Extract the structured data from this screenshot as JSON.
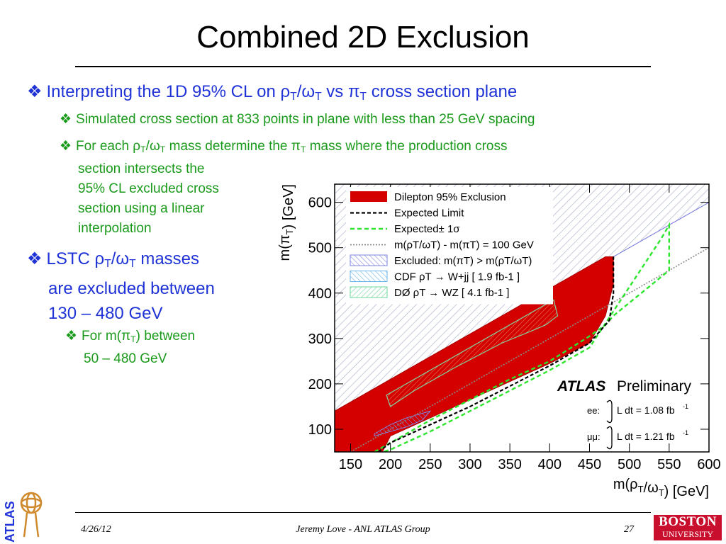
{
  "slide": {
    "title": "Combined 2D Exclusion",
    "bullets": {
      "b1_text": "Interpreting the 1D 95% CL on ",
      "b1_rho": "ρ",
      "b1_sub_T": "T",
      "b1_slash_omega": "/ω",
      "b1_vs": " vs π",
      "b1_tail": " cross section plane",
      "b1_1": "Simulated cross section at 833 points in plane with less than 25 GeV spacing",
      "b1_2_pre": "For each ρ",
      "b1_2_mid": "/ω",
      "b1_2_mass": " mass determine the π",
      "b1_2_line1_tail": " mass where the production cross",
      "b1_2_line2": "section intersects the",
      "b1_2_line3": "95% CL excluded cross",
      "b1_2_line4": "section using a linear",
      "b1_2_line5": "interpolation",
      "b2_pre": "LSTC ρ",
      "b2_mid": "/ω",
      "b2_tail": " masses",
      "b2_line2": "are excluded between",
      "b2_line3": "130 – 480 GeV",
      "b2_1_pre": "For m(π",
      "b2_1_tail": ") between",
      "b2_1_line2": "50 – 480 GeV"
    }
  },
  "chart_data": {
    "type": "area",
    "xlabel_pre": "m(ρ",
    "xlabel_sub1": "T",
    "xlabel_mid": "/ω",
    "xlabel_sub2": "T",
    "xlabel_post": ") [GeV]",
    "ylabel_pre": "m(π",
    "ylabel_sub": "T",
    "ylabel_post": ") [GeV]",
    "xlim": [
      130,
      600
    ],
    "ylim": [
      50,
      640
    ],
    "xticks": [
      "150",
      "200",
      "250",
      "300",
      "350",
      "400",
      "450",
      "500",
      "550",
      "600"
    ],
    "yticks": [
      "100",
      "200",
      "300",
      "400",
      "500",
      "600"
    ],
    "legend": [
      {
        "label": "Dilepton 95% Exclusion",
        "style": "fill-red"
      },
      {
        "label": "Expected Limit",
        "style": "dash-black"
      },
      {
        "label": "Expected± 1σ",
        "style": "dash-green"
      },
      {
        "label": "m(ρT/ωT) - m(πT) = 100 GeV",
        "style": "dot-grey"
      },
      {
        "label": "Excluded: m(πT) > m(ρT/ωT)",
        "style": "hatch-blue"
      },
      {
        "label": "CDF  ρT → W+jj [ 1.9 fb-1 ]",
        "style": "hatch-lightblue"
      },
      {
        "label": "DØ  ρT → WZ [ 4.1 fb-1 ]",
        "style": "hatch-green"
      }
    ],
    "annotation": {
      "atlas": "ATLAS",
      "preliminary": "Preliminary",
      "ee_label": "ee:",
      "ee_lumi": "L dt = 1.08 fb",
      "ee_sup": "-1",
      "mm_label": "μμ:",
      "mm_lumi": "L dt = 1.21 fb",
      "mm_sup": "-1"
    },
    "series": [
      {
        "name": "Dilepton 95% Exclusion",
        "x": [
          130,
          150,
          200,
          250,
          300,
          350,
          400,
          450,
          470,
          480,
          480,
          470,
          450,
          400,
          350,
          300,
          250,
          200,
          190,
          130
        ],
        "y": [
          140,
          160,
          210,
          260,
          310,
          360,
          410,
          460,
          480,
          480,
          420,
          350,
          290,
          245,
          205,
          165,
          125,
          85,
          50,
          50
        ]
      },
      {
        "name": "Expected Limit",
        "x": [
          185,
          200,
          250,
          300,
          350,
          400,
          450,
          475,
          480,
          480
        ],
        "y": [
          50,
          70,
          110,
          150,
          195,
          240,
          290,
          340,
          400,
          480
        ]
      },
      {
        "name": "Expected± 1σ",
        "x": [
          180,
          200,
          250,
          300,
          350,
          400,
          450,
          470,
          480,
          550,
          550,
          540,
          450,
          400,
          350,
          300,
          250,
          200,
          190
        ],
        "y": [
          50,
          70,
          120,
          165,
          210,
          250,
          305,
          330,
          350,
          450,
          550,
          520,
          280,
          230,
          185,
          140,
          95,
          55,
          50
        ]
      },
      {
        "name": "m(ρT/ωT) - m(πT) = 100 GeV",
        "x": [
          150,
          600
        ],
        "y": [
          50,
          500
        ]
      },
      {
        "name": "Excluded: m(πT) > m(ρT/ωT)",
        "x": [
          130,
          600
        ],
        "y": [
          130,
          600
        ]
      },
      {
        "name": "CDF  ρT → W+jj [ 1.9 fb-1 ]",
        "x": [
          180,
          200,
          220,
          240,
          250,
          240,
          220,
          200,
          180
        ],
        "y": [
          90,
          110,
          125,
          135,
          140,
          120,
          105,
          95,
          85
        ]
      },
      {
        "name": "DØ  ρT → WZ [ 4.1 fb-1 ]",
        "x": [
          195,
          400,
          405,
          410,
          395,
          375,
          340,
          280,
          230,
          200,
          195
        ],
        "y": [
          175,
          380,
          385,
          350,
          330,
          315,
          290,
          235,
          185,
          150,
          175
        ]
      }
    ]
  },
  "footer": {
    "date": "4/26/12",
    "author": "Jeremy Love - ANL ATLAS Group",
    "page": "27",
    "logo_atlas": "ATLAS",
    "logo_bu_line1": "BOSTON",
    "logo_bu_line2": "UNIVERSITY"
  },
  "colors": {
    "bullet_blue": "#1f33d6",
    "subbullet_green": "#1a9a1a",
    "exclusion_red": "#d40000",
    "atlas_orange": "#d08a2e",
    "bu_red": "#c8102e"
  }
}
